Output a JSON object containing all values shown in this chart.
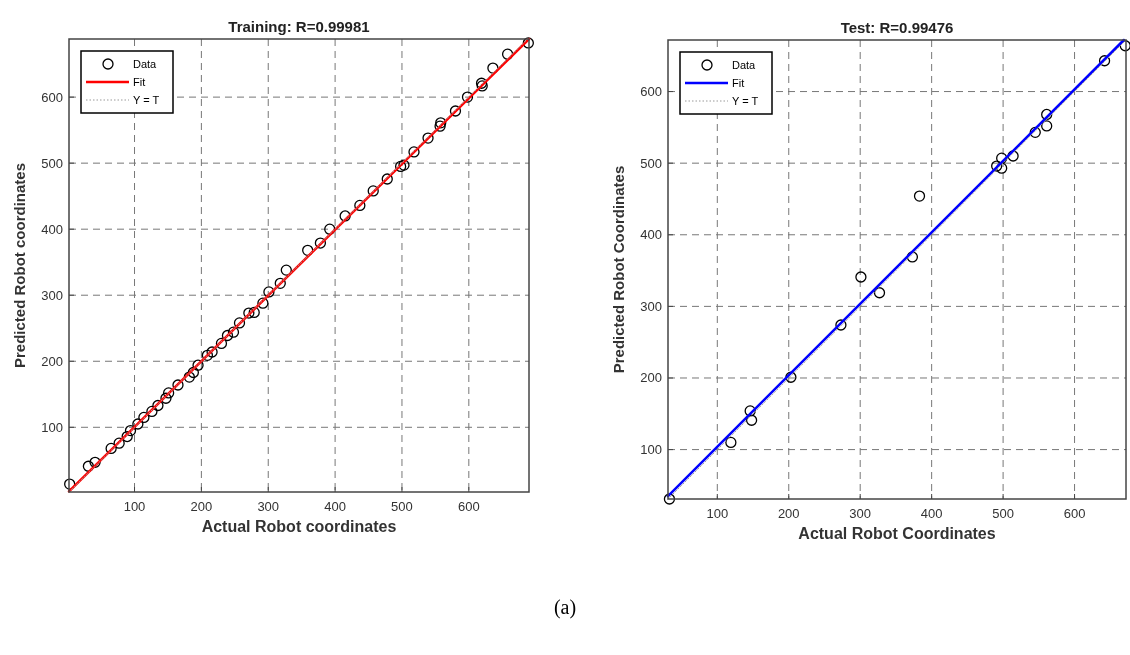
{
  "chart_data": [
    {
      "type": "scatter",
      "title": "Training: R=0.99981",
      "xlabel": "Actual Robot coordinates",
      "ylabel": "Predicted Robot coordinates",
      "xlim": [
        2,
        690
      ],
      "ylim": [
        2,
        688
      ],
      "xticks": [
        100,
        200,
        300,
        400,
        500,
        600
      ],
      "yticks": [
        100,
        200,
        300,
        400,
        500,
        600
      ],
      "grid": true,
      "legend": "top left",
      "annotations": [
        "(a)"
      ],
      "series": [
        {
          "name": "Data",
          "marker": "circle",
          "color": "#000000",
          "x": [
            3,
            31,
            41,
            65,
            77,
            89,
            94,
            105,
            114,
            126,
            135,
            147,
            151,
            165,
            182,
            188,
            195,
            209,
            216,
            230,
            239,
            248,
            257,
            271,
            279,
            292,
            301,
            318,
            327,
            359,
            378,
            392,
            415,
            437,
            457,
            478,
            498,
            503,
            518,
            539,
            557,
            558,
            580,
            598,
            619,
            620,
            636,
            658,
            689
          ],
          "values": [
            14,
            41,
            47,
            68,
            76,
            86,
            95,
            105,
            115,
            124,
            133,
            144,
            152,
            164,
            176,
            183,
            194,
            209,
            214,
            227,
            239,
            244,
            258,
            273,
            274,
            288,
            305,
            318,
            338,
            368,
            379,
            400,
            420,
            436,
            458,
            476,
            495,
            497,
            517,
            538,
            556,
            561,
            579,
            600,
            621,
            617,
            644,
            665,
            682
          ]
        },
        {
          "name": "Fit",
          "type": "line",
          "color": "#ff0000",
          "x": [
            2,
            690
          ],
          "values": [
            3,
            688
          ]
        },
        {
          "name": "Y = T",
          "type": "line",
          "color": "#999999",
          "line_style": "dotted",
          "x": [
            2,
            688
          ],
          "values": [
            2,
            688
          ]
        }
      ]
    },
    {
      "type": "scatter",
      "title": "Test: R=0.99476",
      "xlabel": "Actual Robot Coordinates",
      "ylabel": "Predicted Robot Coordinates",
      "xlim": [
        31,
        672
      ],
      "ylim": [
        31,
        672
      ],
      "xticks": [
        100,
        200,
        300,
        400,
        500,
        600
      ],
      "yticks": [
        100,
        200,
        300,
        400,
        500,
        600
      ],
      "grid": true,
      "legend": "top left",
      "series": [
        {
          "name": "Data",
          "marker": "circle",
          "color": "#000000",
          "x": [
            33,
            119,
            146,
            148,
            203,
            273,
            301,
            327,
            373,
            383,
            491,
            498,
            498,
            514,
            545,
            561,
            561,
            642,
            671
          ],
          "values": [
            31,
            110,
            154,
            141,
            201,
            274,
            341,
            319,
            369,
            454,
            496,
            507,
            493,
            510,
            543,
            568,
            552,
            643,
            664
          ]
        },
        {
          "name": "Fit",
          "type": "line",
          "color": "#0000ff",
          "x": [
            31,
            669
          ],
          "values": [
            35,
            672
          ]
        },
        {
          "name": "Y = T",
          "type": "line",
          "color": "#999999",
          "line_style": "dotted",
          "x": [
            31,
            672
          ],
          "values": [
            31,
            672
          ]
        }
      ]
    }
  ]
}
